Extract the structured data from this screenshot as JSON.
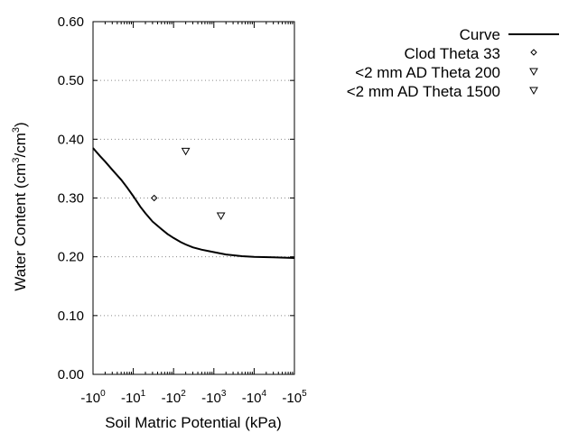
{
  "chart_data": {
    "type": "line",
    "xlabel": "Soil Matric Potential (kPa)",
    "ylabel": "Water Content (cm3/cm3)",
    "ylabel_parts": {
      "prefix": "Water Content (cm",
      "sup1": "3",
      "mid": "/cm",
      "sup2": "3",
      "suffix": ")"
    },
    "x_scale": "log-negative",
    "xlim": [
      -1,
      -100000
    ],
    "ylim": [
      0,
      0.6
    ],
    "x_ticks": [
      {
        "value": -1,
        "base": "-10",
        "exp": "0"
      },
      {
        "value": -10,
        "base": "-10",
        "exp": "1"
      },
      {
        "value": -100,
        "base": "-10",
        "exp": "2"
      },
      {
        "value": -1000,
        "base": "-10",
        "exp": "3"
      },
      {
        "value": -10000,
        "base": "-10",
        "exp": "4"
      },
      {
        "value": -100000,
        "base": "-10",
        "exp": "5"
      }
    ],
    "y_ticks": [
      {
        "value": 0.0,
        "label": "0.00"
      },
      {
        "value": 0.1,
        "label": "0.10"
      },
      {
        "value": 0.2,
        "label": "0.20"
      },
      {
        "value": 0.3,
        "label": "0.30"
      },
      {
        "value": 0.4,
        "label": "0.40"
      },
      {
        "value": 0.5,
        "label": "0.50"
      },
      {
        "value": 0.6,
        "label": "0.60"
      }
    ],
    "grid": "horizontal dotted",
    "legend_position": "top-right, outside plot",
    "series": [
      {
        "name": "Curve",
        "kind": "line",
        "color": "#000000",
        "x": [
          -1,
          -1.5,
          -2,
          -3,
          -5,
          -7,
          -10,
          -15,
          -20,
          -30,
          -50,
          -70,
          -100,
          -150,
          -200,
          -300,
          -500,
          -700,
          -1000,
          -2000,
          -5000,
          -10000,
          -30000,
          -100000
        ],
        "y": [
          0.385,
          0.371,
          0.362,
          0.348,
          0.331,
          0.318,
          0.303,
          0.285,
          0.274,
          0.26,
          0.247,
          0.239,
          0.232,
          0.225,
          0.221,
          0.216,
          0.212,
          0.21,
          0.208,
          0.204,
          0.201,
          0.2,
          0.199,
          0.198
        ]
      },
      {
        "name": "Clod Theta 33",
        "kind": "scatter",
        "marker": "diamond",
        "points": [
          {
            "x": -33,
            "y": 0.3
          }
        ]
      },
      {
        "name": "<2 mm AD Theta 200",
        "kind": "scatter",
        "marker": "triangle-down",
        "points": [
          {
            "x": -200,
            "y": 0.38
          }
        ]
      },
      {
        "name": "<2 mm AD Theta 1500",
        "kind": "scatter",
        "marker": "triangle-down",
        "points": [
          {
            "x": -1500,
            "y": 0.27
          }
        ]
      }
    ]
  }
}
